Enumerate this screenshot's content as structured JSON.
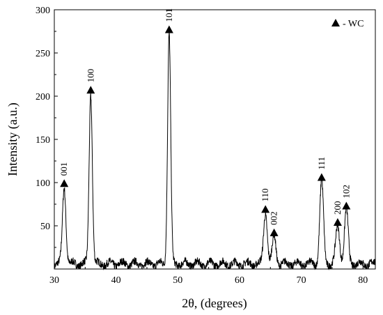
{
  "chart_data": {
    "type": "line",
    "title": "",
    "xlabel": "2θ, (degrees)",
    "ylabel": "Intensity (a.u.)",
    "xlim": [
      30,
      82
    ],
    "ylim": [
      0,
      300
    ],
    "x_ticks": [
      30,
      40,
      50,
      60,
      70,
      80
    ],
    "y_ticks": [
      50,
      100,
      150,
      200,
      250,
      300
    ],
    "grid": false,
    "legend": {
      "position": "top-right",
      "marker": "▲",
      "label": "- WC"
    },
    "baseline": 6,
    "series": [
      {
        "peaks": [
          {
            "x": 31.6,
            "y": 95,
            "width": 0.28,
            "label": "001"
          },
          {
            "x": 35.9,
            "y": 203,
            "width": 0.26,
            "label": "100"
          },
          {
            "x": 48.6,
            "y": 273,
            "width": 0.25,
            "label": "101"
          },
          {
            "x": 64.2,
            "y": 65,
            "width": 0.3,
            "label": "110"
          },
          {
            "x": 65.6,
            "y": 38,
            "width": 0.3,
            "label": "002"
          },
          {
            "x": 73.3,
            "y": 102,
            "width": 0.3,
            "label": "111"
          },
          {
            "x": 75.9,
            "y": 50,
            "width": 0.32,
            "label": "200"
          },
          {
            "x": 77.3,
            "y": 69,
            "width": 0.3,
            "label": "102"
          }
        ]
      }
    ]
  }
}
